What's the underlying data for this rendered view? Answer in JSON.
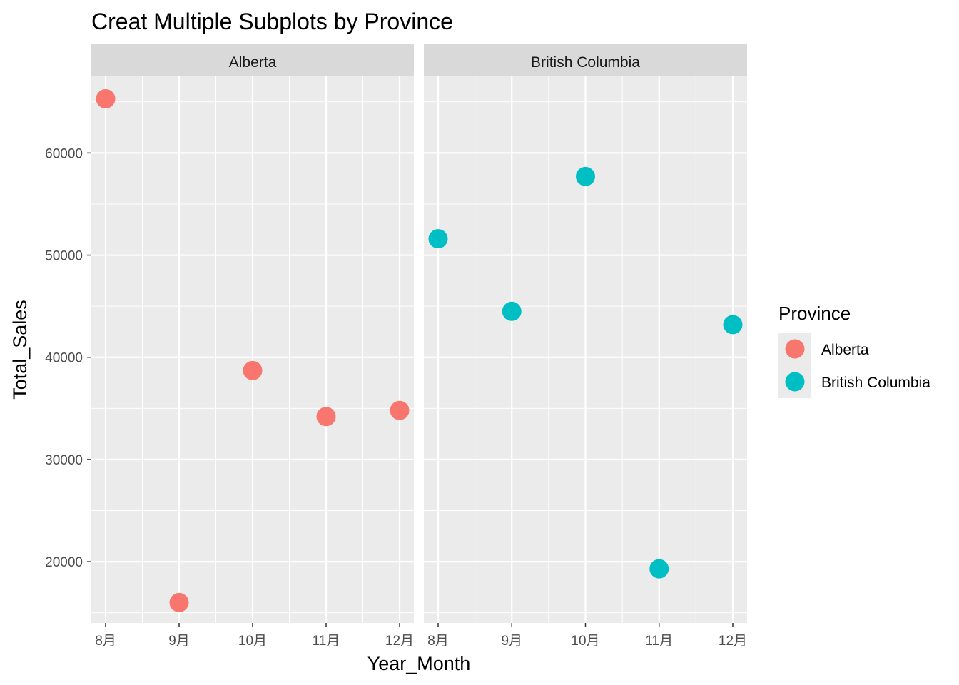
{
  "chart_data": {
    "type": "scatter",
    "title": "Creat Multiple Subplots by Province",
    "xlabel": "Year_Month",
    "ylabel": "Total_Sales",
    "categories": [
      "8月",
      "9月",
      "10月",
      "11月",
      "12月"
    ],
    "y_ticks": [
      20000,
      30000,
      40000,
      50000,
      60000
    ],
    "y_tick_labels": [
      "20000",
      "30000",
      "40000",
      "50000",
      "60000"
    ],
    "ylim": [
      14000,
      67500
    ],
    "grid": true,
    "legend_title": "Province",
    "legend_position": "right",
    "series": [
      {
        "name": "Alberta",
        "color": "#F8766D",
        "values": [
          65300,
          16000,
          38700,
          34200,
          34800
        ]
      },
      {
        "name": "British Columbia",
        "color": "#00BFC4",
        "values": [
          51600,
          44500,
          57700,
          19300,
          43200
        ]
      }
    ],
    "facets": [
      {
        "label": "Alberta",
        "series": 0
      },
      {
        "label": "British Columbia",
        "series": 1
      }
    ]
  }
}
